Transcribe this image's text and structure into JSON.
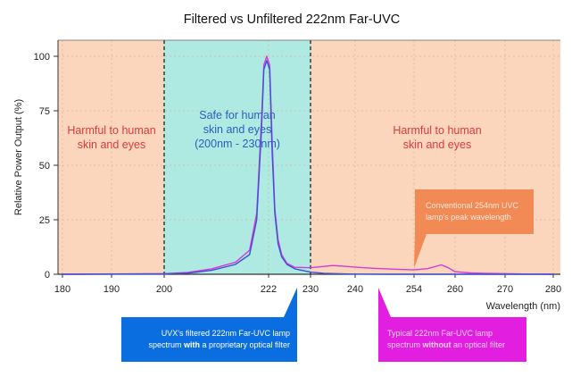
{
  "chart_data": {
    "type": "line",
    "title": "Filtered vs Unfiltered 222nm Far-UVC",
    "xlabel": "Wavelength (nm)",
    "ylabel": "Relative Power Output (%)",
    "x_ticks": [
      "180",
      "190",
      "200",
      "222",
      "230",
      "240",
      "254",
      "260",
      "270",
      "280"
    ],
    "y_ticks": [
      "0",
      "25",
      "50",
      "75",
      "100"
    ],
    "ylim": [
      0,
      100
    ],
    "xlim": [
      180,
      280
    ],
    "grid": true,
    "regions": [
      {
        "from": 180,
        "to": 200,
        "label_lines": [
          "Harmful to human",
          "skin and eyes"
        ],
        "color": "#fbd6bd",
        "text_color": "#d93b3b"
      },
      {
        "from": 200,
        "to": 230,
        "label_lines": [
          "Safe for human",
          "skin and eyes",
          "(200nm - 230nm)"
        ],
        "color": "#aee9e2",
        "text_color": "#2a5fbf"
      },
      {
        "from": 230,
        "to": 280,
        "label_lines": [
          "Harmful to human",
          "skin and eyes"
        ],
        "color": "#fbd6bd",
        "text_color": "#d93b3b"
      }
    ],
    "series": [
      {
        "name": "Unfiltered",
        "color": "#d63ad6",
        "x": [
          180,
          200,
          205,
          210,
          215,
          218,
          219.5,
          220.5,
          221,
          221.6,
          222.2,
          222.7,
          223.2,
          223.8,
          224.5,
          225.5,
          227,
          230,
          233,
          235,
          238,
          242,
          246,
          250,
          254,
          256,
          258,
          259,
          260,
          263,
          266,
          270,
          275,
          280
        ],
        "y": [
          0,
          0.2,
          0.8,
          2.5,
          5.5,
          11,
          28,
          70,
          96,
          100,
          96,
          60,
          30,
          16,
          9,
          5,
          3.2,
          3,
          3.6,
          4,
          3.6,
          3,
          2.6,
          2.3,
          2,
          2.6,
          4.3,
          3,
          1.2,
          0.6,
          0.4,
          0.3,
          0.1,
          0
        ]
      },
      {
        "name": "Filtered",
        "color": "#3f4fd8",
        "x": [
          180,
          200,
          205,
          210,
          215,
          218,
          219.5,
          220.5,
          221,
          221.6,
          222.2,
          222.7,
          223.2,
          223.8,
          224.5,
          225.5,
          227,
          230,
          233,
          240,
          250,
          280
        ],
        "y": [
          0,
          0.2,
          0.5,
          1.8,
          4.5,
          9,
          25,
          66,
          94,
          98,
          94,
          55,
          28,
          14,
          8,
          4.5,
          2.5,
          1,
          0.4,
          0.1,
          0,
          0
        ]
      }
    ],
    "callouts": [
      {
        "id": "conventional",
        "lines": [
          "Conventional 254nm UVC",
          "lamp's peak wavelength"
        ],
        "color": "#f18a55"
      },
      {
        "id": "filtered",
        "line1": "UVX's filtered 222nm Far-UVC lamp",
        "line2_pre": "spectrum ",
        "line2_bold": "with",
        "line2_post": " a proprietary optical filter",
        "color": "#0a6de0"
      },
      {
        "id": "unfiltered",
        "line1": "Typical 222nm Far-UVC lamp",
        "line2_pre": "spectrum ",
        "line2_bold": "without",
        "line2_post": " an optical filter",
        "color": "#e21ee0"
      }
    ]
  }
}
